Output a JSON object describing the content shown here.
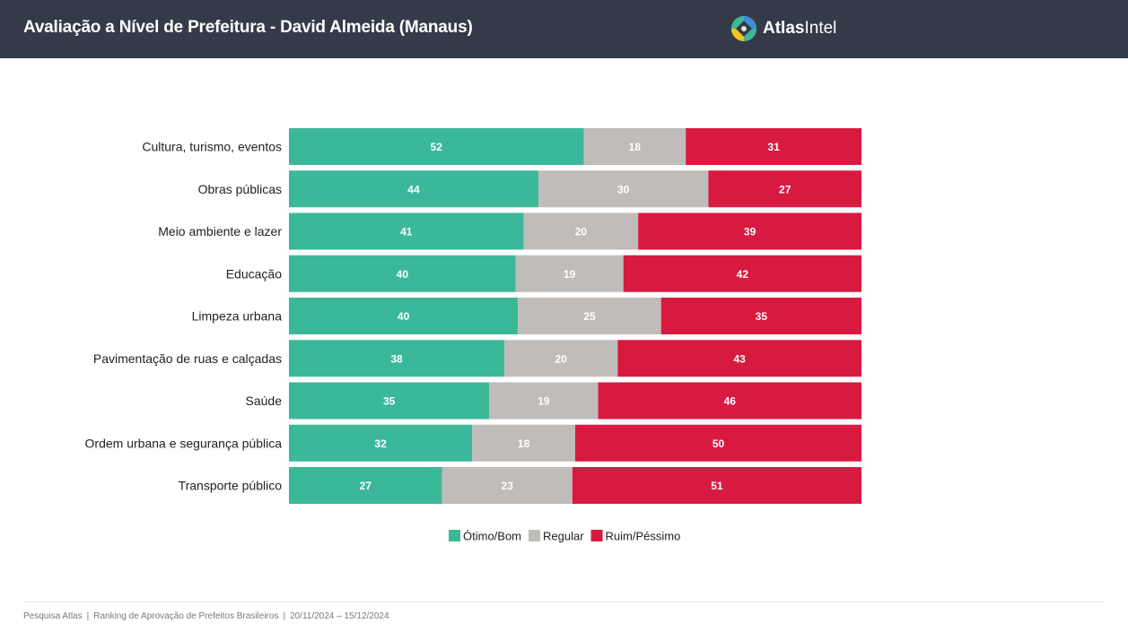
{
  "header": {
    "title": "Avaliação a Nível de Prefeitura - David Almeida (Manaus)",
    "brand_bold": "Atlas",
    "brand_light": "Intel"
  },
  "footer": {
    "source": "Pesquisa Atlas",
    "study": "Ranking de Aprovação de Prefeitos Brasileiros",
    "period": "20/11/2024 – 15/12/2024",
    "separator": "|"
  },
  "colors": {
    "header_bg": "#343a48",
    "otimo_bom": "#3bb89a",
    "regular": "#c0bcb9",
    "ruim_pessimo": "#d91a40",
    "logo": [
      "#3bb89a",
      "#f0c419",
      "#3b8fd9",
      "#e8e4d0"
    ]
  },
  "chart_data": {
    "type": "bar",
    "orientation": "horizontal",
    "stacked": true,
    "normalized": true,
    "categories": [
      "Cultura, turismo, eventos",
      "Obras públicas",
      "Meio ambiente e lazer",
      "Educação",
      "Limpeza urbana",
      "Pavimentação de ruas e calçadas",
      "Saúde",
      "Ordem urbana e segurança pública",
      "Transporte público"
    ],
    "series": [
      {
        "name": "Ótimo/Bom",
        "color": "#3bb89a",
        "values": [
          52,
          44,
          41,
          40,
          40,
          38,
          35,
          32,
          27
        ]
      },
      {
        "name": "Regular",
        "color": "#c0bcb9",
        "values": [
          18,
          30,
          20,
          19,
          25,
          20,
          19,
          18,
          23
        ]
      },
      {
        "name": "Ruim/Péssimo",
        "color": "#d91a40",
        "values": [
          31,
          27,
          39,
          42,
          35,
          43,
          46,
          50,
          51
        ]
      }
    ],
    "legend_position": "bottom",
    "grid": false
  }
}
